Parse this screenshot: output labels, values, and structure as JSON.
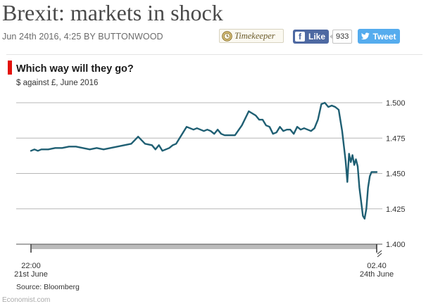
{
  "article": {
    "headline": "Brexit: markets in shock",
    "byline_date": "Jun 24th 2016, 4:25",
    "byline_by": "BY",
    "byline_author": "BUTTONWOOD"
  },
  "social": {
    "timekeeper_label": "Timekeeper",
    "like_label": "Like",
    "like_count": "933",
    "tweet_label": "Tweet"
  },
  "chart": {
    "title": "Which way will they go?",
    "subtitle": "$ against £, June 2016",
    "source": "Source: Bloomberg",
    "x_start_time": "22:00",
    "x_start_date": "21st June",
    "x_end_time": "02.40",
    "x_end_date": "24th June",
    "colors": {
      "line": "#1f5f73",
      "gridline": "#b7b7b7",
      "axis": "#555555",
      "accent": "#e3120b"
    }
  },
  "footer": {
    "credit": "Economist.com"
  },
  "chart_data": {
    "type": "line",
    "title": "Which way will they go?",
    "subtitle": "$ against £, June 2016",
    "xlabel": "",
    "ylabel": "",
    "ylim": [
      1.4,
      1.5
    ],
    "yticks": [
      1.4,
      1.425,
      1.45,
      1.475,
      1.5
    ],
    "ytick_labels": [
      "1.400",
      "1.425",
      "1.450",
      "1.475",
      "1.500"
    ],
    "xticks": [
      0,
      1
    ],
    "xtick_labels": [
      "22:00\n21st June",
      "02.40\n24th June"
    ],
    "axis_break": "right end of x axis",
    "grid": true,
    "series": [
      {
        "x": [
          0,
          0.01,
          0.02,
          0.03,
          0.05,
          0.07,
          0.09,
          0.11,
          0.13,
          0.15,
          0.17,
          0.19,
          0.21,
          0.23,
          0.25,
          0.27,
          0.29,
          0.31,
          0.33,
          0.35,
          0.36,
          0.37,
          0.38,
          0.39,
          0.4,
          0.41,
          0.42,
          0.43,
          0.45,
          0.47,
          0.48,
          0.49,
          0.5,
          0.51,
          0.52,
          0.53,
          0.54,
          0.55,
          0.56,
          0.57,
          0.59,
          0.61,
          0.63,
          0.65,
          0.66,
          0.67,
          0.68,
          0.69,
          0.7,
          0.71,
          0.72,
          0.73,
          0.74,
          0.75,
          0.76,
          0.77,
          0.78,
          0.79,
          0.8,
          0.81,
          0.82,
          0.83,
          0.84,
          0.85,
          0.86,
          0.87,
          0.88,
          0.89,
          0.9,
          0.91,
          0.915,
          0.92,
          0.925,
          0.93,
          0.935,
          0.94,
          0.945,
          0.95,
          0.955,
          0.96,
          0.965,
          0.97,
          0.975,
          0.98,
          0.985,
          0.99,
          0.995,
          1.0
        ],
        "y": [
          1.466,
          1.467,
          1.466,
          1.467,
          1.467,
          1.468,
          1.468,
          1.469,
          1.469,
          1.468,
          1.467,
          1.468,
          1.467,
          1.468,
          1.469,
          1.47,
          1.471,
          1.476,
          1.471,
          1.47,
          1.467,
          1.47,
          1.466,
          1.467,
          1.468,
          1.47,
          1.471,
          1.475,
          1.483,
          1.481,
          1.482,
          1.481,
          1.48,
          1.481,
          1.48,
          1.478,
          1.481,
          1.478,
          1.477,
          1.477,
          1.477,
          1.484,
          1.494,
          1.491,
          1.488,
          1.488,
          1.484,
          1.483,
          1.478,
          1.479,
          1.483,
          1.48,
          1.481,
          1.481,
          1.478,
          1.483,
          1.481,
          1.482,
          1.481,
          1.48,
          1.482,
          1.488,
          1.499,
          1.5,
          1.497,
          1.498,
          1.497,
          1.495,
          1.48,
          1.459,
          1.444,
          1.464,
          1.458,
          1.463,
          1.456,
          1.46,
          1.455,
          1.44,
          1.43,
          1.42,
          1.418,
          1.425,
          1.44,
          1.448,
          1.451,
          1.451,
          1.451,
          1.451
        ]
      }
    ]
  }
}
